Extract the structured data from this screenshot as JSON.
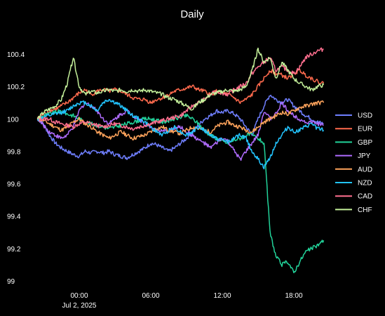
{
  "chart_data": {
    "type": "line",
    "title": "Daily",
    "x_ticks": [
      "00:00",
      "06:00",
      "12:00",
      "18:00"
    ],
    "x_sub_label": "Jul 2, 2025",
    "x_range_hours": [
      -3.5,
      20.6
    ],
    "ylim": [
      99,
      100.45
    ],
    "y_ticks": [
      "100.4",
      "100.2",
      "100",
      "99.8",
      "99.6",
      "99.4",
      "99.2",
      "99"
    ],
    "grid": false,
    "legend_position": "right",
    "x_hours": [
      -3.5,
      -3,
      -2.5,
      -2,
      -1.5,
      -1,
      -0.5,
      0,
      0.5,
      1,
      1.5,
      2,
      2.5,
      3,
      3.5,
      4,
      4.5,
      5,
      5.5,
      6,
      6.5,
      7,
      7.5,
      8,
      8.5,
      9,
      9.5,
      10,
      10.5,
      11,
      11.5,
      12,
      12.5,
      13,
      13.5,
      14,
      14.5,
      15,
      15.5,
      16,
      16.5,
      17,
      17.5,
      18,
      18.5,
      19,
      19.5,
      20,
      20.5
    ],
    "series": [
      {
        "name": "USD",
        "color": "#6f7fff",
        "values": [
          100.0,
          99.97,
          99.9,
          99.85,
          99.82,
          99.8,
          99.78,
          99.77,
          99.8,
          99.79,
          99.8,
          99.79,
          99.8,
          99.78,
          99.77,
          99.76,
          99.78,
          99.8,
          99.82,
          99.85,
          99.84,
          99.82,
          99.8,
          99.82,
          99.85,
          99.88,
          99.92,
          99.96,
          100.0,
          100.02,
          100.05,
          100.04,
          100.05,
          100.03,
          100.0,
          99.95,
          99.9,
          100.0,
          100.08,
          100.15,
          100.12,
          100.1,
          100.12,
          100.08,
          100.05,
          100.02,
          100.0,
          99.98,
          99.97
        ]
      },
      {
        "name": "EUR",
        "color": "#ff6a4d",
        "values": [
          100.0,
          100.03,
          100.05,
          100.06,
          100.08,
          100.1,
          100.13,
          100.16,
          100.18,
          100.15,
          100.17,
          100.18,
          100.17,
          100.18,
          100.17,
          100.15,
          100.13,
          100.12,
          100.12,
          100.1,
          100.12,
          100.13,
          100.15,
          100.17,
          100.18,
          100.19,
          100.2,
          100.18,
          100.17,
          100.15,
          100.17,
          100.16,
          100.15,
          100.13,
          100.1,
          100.12,
          100.15,
          100.2,
          100.25,
          100.3,
          100.28,
          100.27,
          100.25,
          100.28,
          100.3,
          100.27,
          100.25,
          100.23,
          100.22
        ]
      },
      {
        "name": "GBP",
        "color": "#22d39a",
        "values": [
          100.0,
          100.02,
          100.03,
          100.04,
          100.05,
          100.03,
          100.02,
          100.0,
          99.98,
          99.97,
          99.96,
          99.95,
          99.94,
          99.95,
          99.96,
          99.97,
          99.98,
          99.99,
          100.0,
          100.0,
          99.99,
          99.98,
          99.99,
          100.0,
          100.01,
          100.02,
          100.0,
          99.97,
          99.93,
          99.9,
          99.88,
          99.86,
          99.85,
          99.87,
          99.88,
          99.9,
          99.9,
          99.88,
          99.85,
          99.3,
          99.15,
          99.1,
          99.12,
          99.05,
          99.12,
          99.18,
          99.2,
          99.22,
          99.25
        ]
      },
      {
        "name": "JPY",
        "color": "#b06cff",
        "values": [
          100.0,
          99.96,
          99.92,
          99.9,
          99.88,
          99.9,
          99.95,
          100.05,
          100.1,
          100.08,
          100.05,
          100.0,
          99.97,
          100.0,
          100.03,
          100.05,
          100.02,
          100.0,
          99.97,
          99.95,
          99.93,
          99.92,
          99.93,
          99.94,
          99.95,
          99.92,
          99.9,
          99.87,
          99.85,
          99.82,
          99.85,
          99.88,
          99.86,
          99.8,
          99.75,
          99.8,
          99.85,
          99.9,
          100.05,
          100.0,
          100.03,
          100.1,
          100.05,
          100.02,
          100.0,
          99.98,
          99.98,
          99.97,
          99.96
        ]
      },
      {
        "name": "AUD",
        "color": "#ffa45c",
        "values": [
          100.0,
          99.99,
          99.97,
          99.95,
          99.93,
          99.95,
          99.98,
          100.0,
          99.97,
          99.95,
          99.92,
          99.9,
          99.88,
          99.9,
          99.92,
          99.9,
          99.88,
          99.89,
          99.9,
          99.92,
          99.94,
          99.95,
          99.93,
          99.92,
          99.91,
          99.93,
          99.95,
          99.94,
          99.93,
          99.92,
          99.95,
          99.97,
          99.98,
          99.96,
          99.95,
          99.93,
          99.92,
          99.95,
          99.98,
          100.0,
          100.02,
          100.04,
          100.03,
          100.05,
          100.07,
          100.08,
          100.09,
          100.1,
          100.1
        ]
      },
      {
        "name": "NZD",
        "color": "#22c4ff",
        "values": [
          100.0,
          100.01,
          100.02,
          100.03,
          100.04,
          100.05,
          100.08,
          100.1,
          100.1,
          100.08,
          100.05,
          100.1,
          100.12,
          100.1,
          100.08,
          100.05,
          100.02,
          100.0,
          99.98,
          99.95,
          99.92,
          99.9,
          99.93,
          99.95,
          99.92,
          99.9,
          99.92,
          99.95,
          99.93,
          99.9,
          99.88,
          99.87,
          99.86,
          99.88,
          99.9,
          99.88,
          99.8,
          99.75,
          99.7,
          99.76,
          99.85,
          99.9,
          99.95,
          99.92,
          99.93,
          99.95,
          99.97,
          99.94,
          99.93
        ]
      },
      {
        "name": "CAD",
        "color": "#ff6f8f",
        "values": [
          100.0,
          100.0,
          100.0,
          99.98,
          99.97,
          99.96,
          99.95,
          99.97,
          99.98,
          99.97,
          99.96,
          99.95,
          99.96,
          99.97,
          99.96,
          99.95,
          99.94,
          99.95,
          99.96,
          99.97,
          99.98,
          99.99,
          100.0,
          100.01,
          100.02,
          100.05,
          100.08,
          100.1,
          100.12,
          100.15,
          100.17,
          100.16,
          100.15,
          100.18,
          100.2,
          100.22,
          100.28,
          100.32,
          100.35,
          100.38,
          100.3,
          100.32,
          100.3,
          100.28,
          100.32,
          100.38,
          100.4,
          100.42,
          100.43
        ]
      },
      {
        "name": "CHF",
        "color": "#c4f09a",
        "values": [
          100.0,
          100.04,
          100.06,
          100.08,
          100.12,
          100.22,
          100.38,
          100.2,
          100.15,
          100.17,
          100.16,
          100.17,
          100.18,
          100.17,
          100.18,
          100.17,
          100.18,
          100.17,
          100.18,
          100.17,
          100.16,
          100.15,
          100.13,
          100.12,
          100.1,
          100.08,
          100.06,
          100.1,
          100.12,
          100.15,
          100.16,
          100.17,
          100.18,
          100.17,
          100.18,
          100.2,
          100.3,
          100.43,
          100.35,
          100.38,
          100.25,
          100.35,
          100.3,
          100.25,
          100.22,
          100.2,
          100.18,
          100.2,
          100.21
        ]
      }
    ]
  }
}
